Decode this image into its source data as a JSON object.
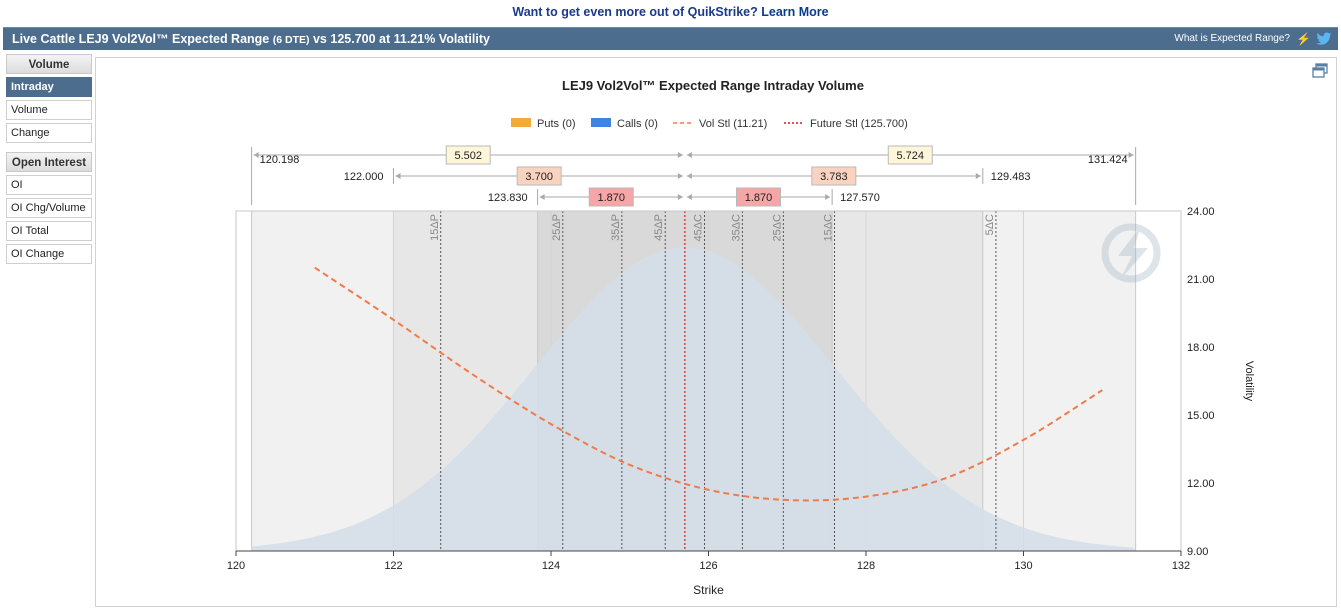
{
  "promo": {
    "text": "Want to get even more out of QuikStrike?",
    "link": "Learn More"
  },
  "header": {
    "title_main": "Live Cattle LEJ9 Vol2Vol™ Expected Range",
    "title_small": "(6 DTE)",
    "title_rest": "vs 125.700 at 11.21% Volatility",
    "help_link": "What is Expected Range?",
    "icons": [
      "lightning-icon",
      "twitter-bird-icon"
    ]
  },
  "sidebar": {
    "volume_header": "Volume",
    "volume_items": [
      "Intraday",
      "Volume",
      "Change"
    ],
    "active": "Intraday",
    "oi_header": "Open Interest",
    "oi_items": [
      "OI",
      "OI Chg/Volume",
      "OI Total",
      "OI Change"
    ]
  },
  "colors": {
    "header": "#4d6d8e",
    "puts": "#f5a93a",
    "calls": "#3d85e0",
    "vol_line": "#f07a4a",
    "future_line": "#d21f1f",
    "curve_fill": "#d3dee7"
  },
  "chart_data": {
    "type": "area",
    "title": "LEJ9 Vol2Vol™ Expected Range Intraday Volume",
    "xlabel": "Strike",
    "ylabel": "Volatility",
    "xlim": [
      120,
      132
    ],
    "ylim": [
      9,
      24
    ],
    "x_ticks": [
      "120",
      "122",
      "124",
      "126",
      "128",
      "130",
      "132"
    ],
    "y_ticks": [
      "9.00",
      "12.00",
      "15.00",
      "18.00",
      "21.00",
      "24.00"
    ],
    "legend": [
      {
        "label": "Puts (0)",
        "kind": "box",
        "color": "#f5a93a"
      },
      {
        "label": "Calls (0)",
        "kind": "box",
        "color": "#3d85e0"
      },
      {
        "label": "Vol Stl (11.21)",
        "kind": "dash",
        "color": "#f07a4a"
      },
      {
        "label": "Future Stl (125.700)",
        "kind": "dot",
        "color": "#d21f1f"
      }
    ],
    "future": 125.7,
    "ranges": [
      {
        "low": 120.198,
        "high": 131.424,
        "low_label": "120.198",
        "high_label": "131.424",
        "down": "5.502",
        "up": "5.724",
        "box_color": "#fdf6d9"
      },
      {
        "low": 122.0,
        "high": 129.483,
        "low_label": "122.000",
        "high_label": "129.483",
        "down": "3.700",
        "up": "3.783",
        "box_color": "#f9d3c0"
      },
      {
        "low": 123.83,
        "high": 127.57,
        "low_label": "123.830",
        "high_label": "127.570",
        "down": "1.870",
        "up": "1.870",
        "box_color": "#f6a6a6"
      }
    ],
    "deltas": [
      {
        "label": "15ΔP",
        "x": 122.6
      },
      {
        "label": "25ΔP",
        "x": 124.15
      },
      {
        "label": "35ΔP",
        "x": 124.9
      },
      {
        "label": "45ΔP",
        "x": 125.45
      },
      {
        "label": "45ΔC",
        "x": 125.95
      },
      {
        "label": "35ΔC",
        "x": 126.43
      },
      {
        "label": "25ΔC",
        "x": 126.95
      },
      {
        "label": "15ΔC",
        "x": 127.6
      },
      {
        "label": "5ΔC",
        "x": 129.65
      }
    ],
    "distribution": {
      "peak": 22.4,
      "mean": 125.7,
      "sd": 1.9,
      "base": 9.0
    },
    "vol_smile": {
      "x": [
        121,
        122,
        123,
        124,
        125,
        126,
        127,
        128,
        129,
        130,
        131
      ],
      "y": [
        21.5,
        19.2,
        16.8,
        14.6,
        12.8,
        11.7,
        11.25,
        11.4,
        12.2,
        13.9,
        16.1
      ]
    }
  }
}
